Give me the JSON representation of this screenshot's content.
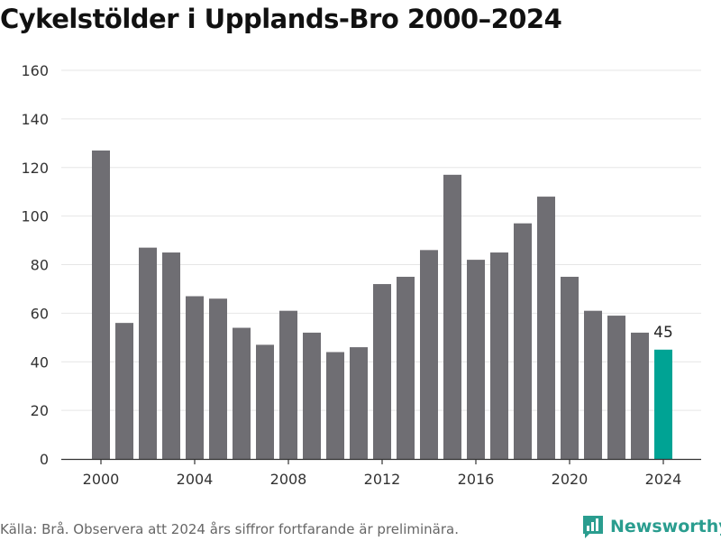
{
  "title": "Cykelstölder i Upplands-Bro 2000–2024",
  "source": "Källa: Brå. Observera att 2024 års siffror fortfarande är preliminära.",
  "brand": {
    "name": "Newsworthy",
    "icon": "bar-chart-logo-icon",
    "color": "#2a9d8f"
  },
  "colors": {
    "bar": "#6f6e73",
    "highlight": "#00a394",
    "grid": "#e6e6e6",
    "axis": "#333333"
  },
  "chart_data": {
    "type": "bar",
    "title": "Cykelstölder i Upplands-Bro 2000–2024",
    "xlabel": "",
    "ylabel": "",
    "x": [
      2000,
      2001,
      2002,
      2003,
      2004,
      2005,
      2006,
      2007,
      2008,
      2009,
      2010,
      2011,
      2012,
      2013,
      2014,
      2015,
      2016,
      2017,
      2018,
      2019,
      2020,
      2021,
      2022,
      2023,
      2024
    ],
    "values": [
      127,
      56,
      87,
      85,
      67,
      66,
      54,
      47,
      61,
      52,
      44,
      46,
      72,
      75,
      86,
      117,
      82,
      85,
      97,
      108,
      75,
      61,
      59,
      52,
      45
    ],
    "ylim": [
      0,
      160
    ],
    "yticks": [
      0,
      20,
      40,
      60,
      80,
      100,
      120,
      140,
      160
    ],
    "xticks": [
      2000,
      2004,
      2008,
      2012,
      2016,
      2020,
      2024
    ],
    "highlight": {
      "x": 2024,
      "label": "45"
    },
    "grid": true,
    "legend": "none"
  }
}
